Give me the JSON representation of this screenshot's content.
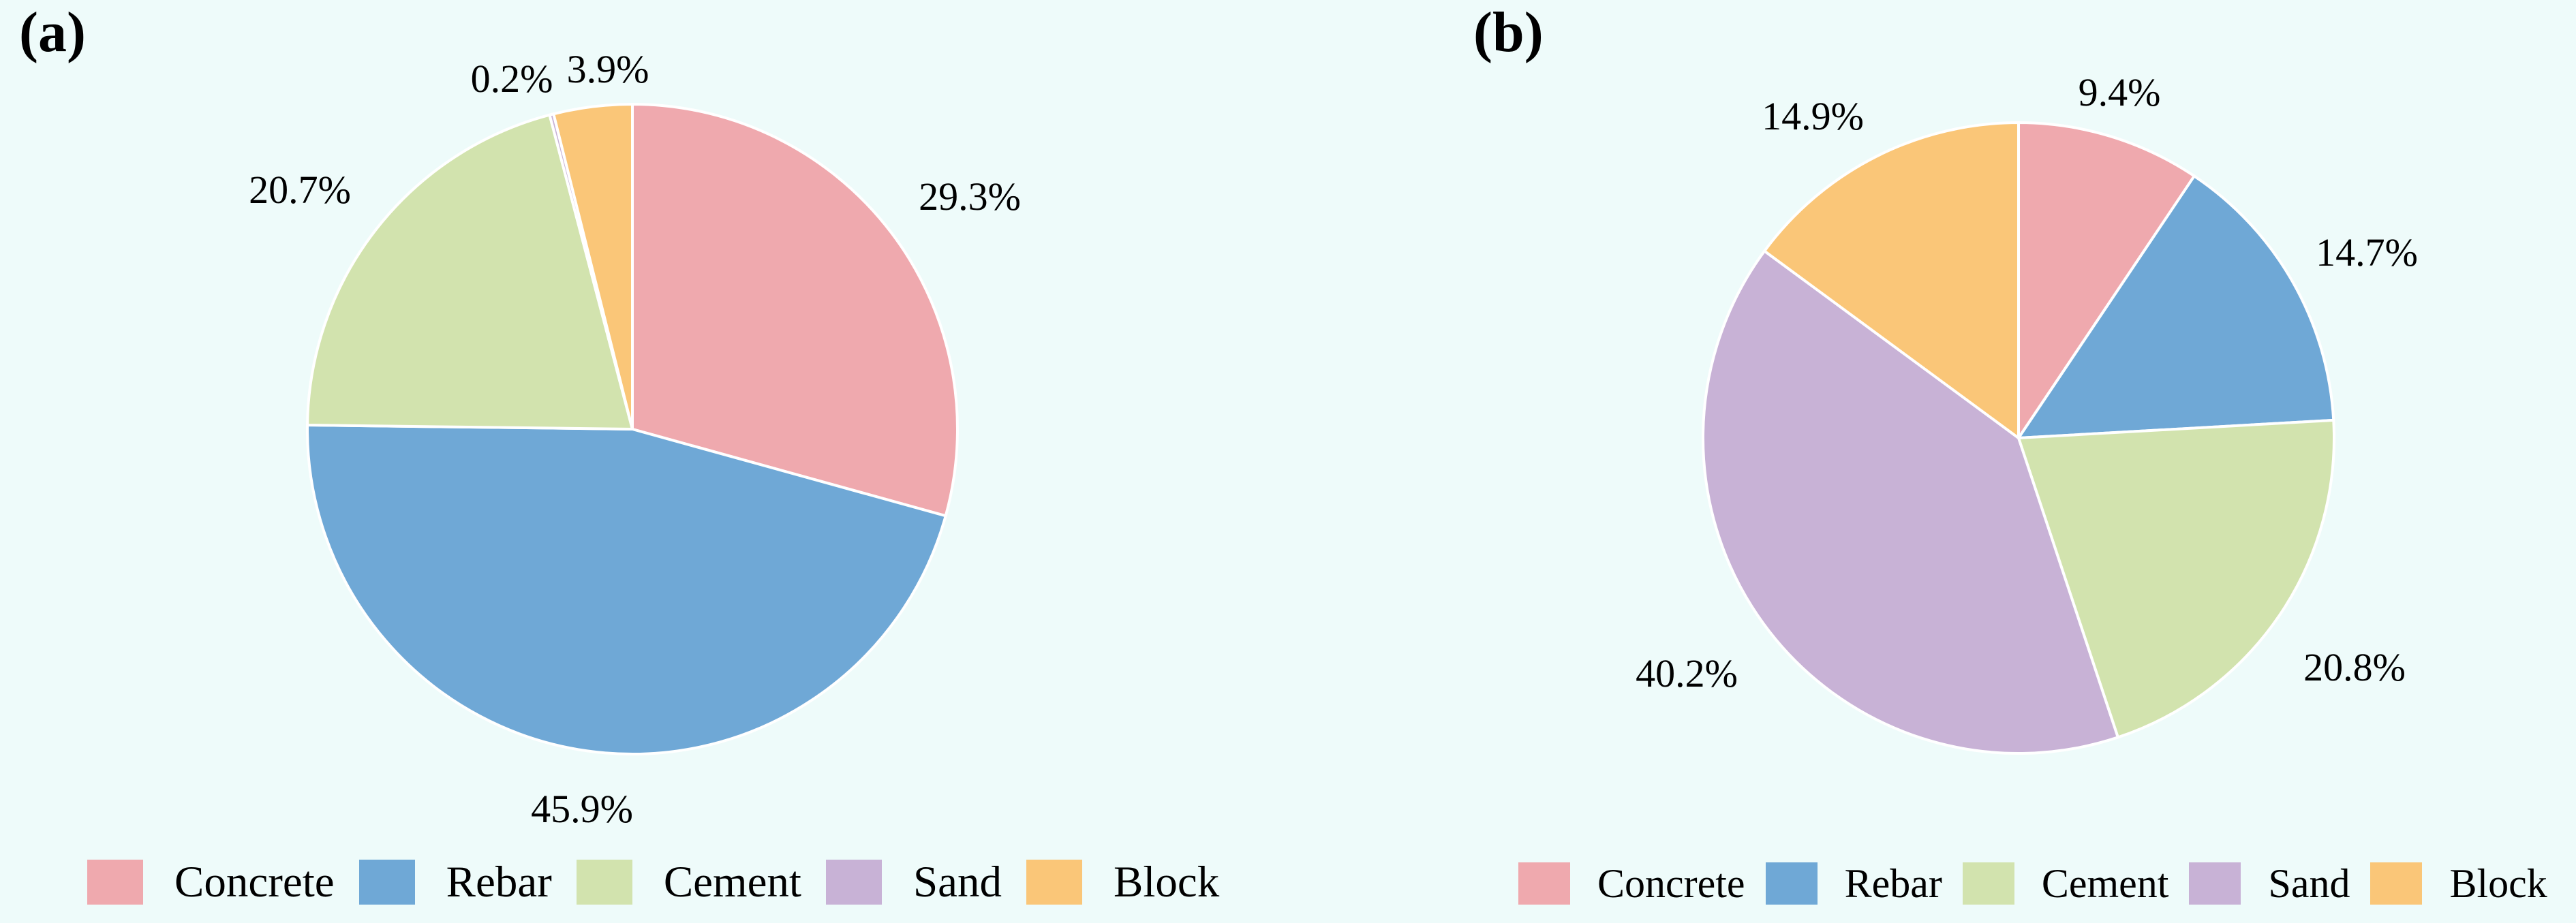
{
  "page": {
    "background": "#eefbfa",
    "text_color": "#000000"
  },
  "chart_data": [
    {
      "type": "pie",
      "panel_label": "(a)",
      "categories": [
        "Concrete",
        "Rebar",
        "Cement",
        "Sand",
        "Block"
      ],
      "values": [
        29.3,
        45.9,
        20.7,
        0.2,
        3.9
      ],
      "labels": [
        "29.3%",
        "45.9%",
        "20.7%",
        "0.2%",
        "3.9%"
      ],
      "colors": [
        "#efa9ae",
        "#6fa8d6",
        "#d2e3ae",
        "#c8b2d6",
        "#fac678"
      ],
      "slice_border_color": "#ffffff",
      "start_angle": "top",
      "direction": "clockwise",
      "legend_position": "bottom"
    },
    {
      "type": "pie",
      "panel_label": "(b)",
      "categories": [
        "Concrete",
        "Rebar",
        "Cement",
        "Sand",
        "Block"
      ],
      "values": [
        9.4,
        14.7,
        20.8,
        40.2,
        14.9
      ],
      "labels": [
        "9.4%",
        "14.7%",
        "20.8%",
        "40.2%",
        "14.9%"
      ],
      "colors": [
        "#efa9ae",
        "#6fa8d6",
        "#d2e3ae",
        "#c8b2d6",
        "#fac678"
      ],
      "slice_border_color": "#ffffff",
      "start_angle": "top",
      "direction": "clockwise",
      "legend_position": "bottom"
    }
  ]
}
